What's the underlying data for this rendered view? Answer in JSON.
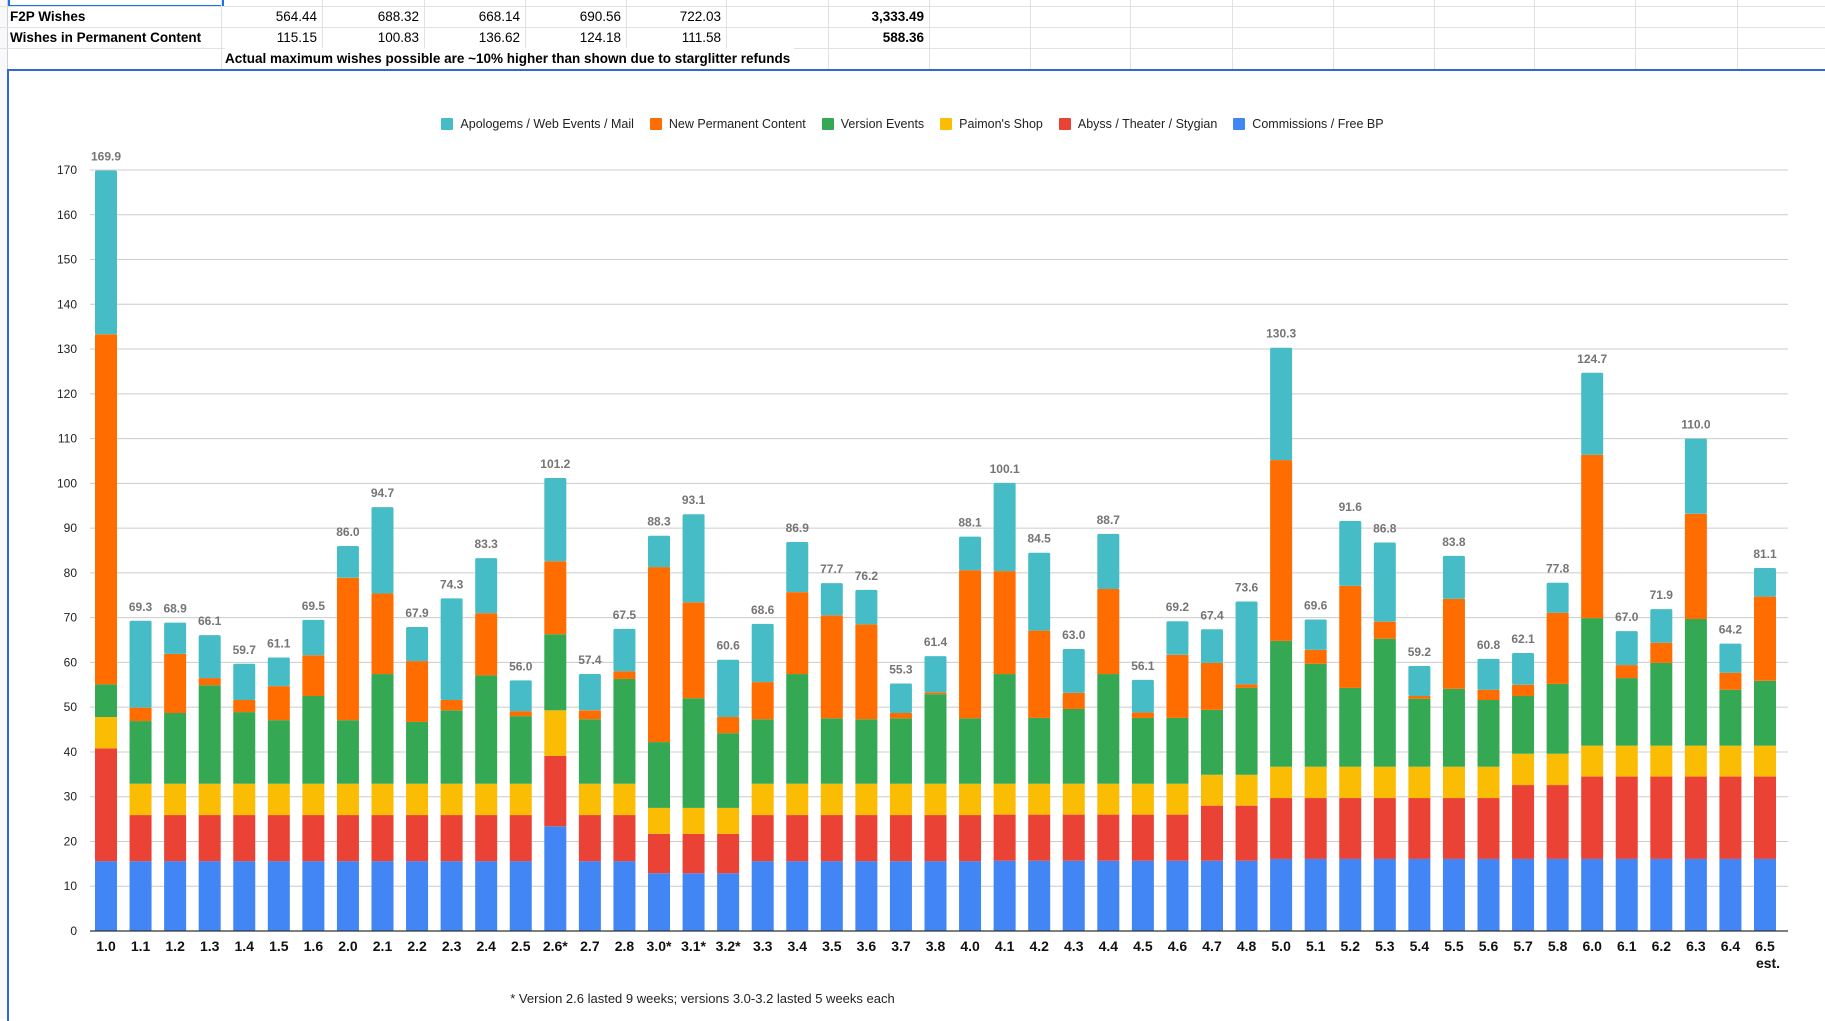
{
  "sheet": {
    "rows": [
      {
        "label": "F2P Wishes",
        "values": [
          "564.44",
          "688.32",
          "668.14",
          "690.56",
          "722.03"
        ],
        "total": "3,333.49"
      },
      {
        "label": "Wishes in Permanent Content",
        "values": [
          "115.15",
          "100.83",
          "136.62",
          "124.18",
          "111.58"
        ],
        "total": "588.36"
      }
    ],
    "note": "Actual maximum wishes possible are ~10% higher than shown due to starglitter refunds"
  },
  "colors": {
    "apologems": "#46bdc6",
    "permanent": "#ff6d01",
    "version_events": "#34a853",
    "paimon": "#fbbc04",
    "abyss": "#ea4335",
    "commissions": "#4285f4",
    "total_label": "#757575",
    "grid": "#cccccc"
  },
  "chart_data": {
    "type": "bar",
    "stacked": true,
    "title": "",
    "xlabel": "",
    "ylabel": "",
    "ylim": [
      0,
      170
    ],
    "yticks": [
      0,
      10,
      20,
      30,
      40,
      50,
      60,
      70,
      80,
      90,
      100,
      110,
      120,
      130,
      140,
      150,
      160,
      170
    ],
    "grid": true,
    "legend_position": "top",
    "legend": [
      "Apologems / Web Events / Mail",
      "New Permanent Content",
      "Version Events",
      "Paimon's Shop",
      "Abyss / Theater / Stygian",
      "Commissions / Free BP"
    ],
    "categories": [
      "1.0",
      "1.1",
      "1.2",
      "1.3",
      "1.4",
      "1.5",
      "1.6",
      "2.0",
      "2.1",
      "2.2",
      "2.3",
      "2.4",
      "2.5",
      "2.6*",
      "2.7",
      "2.8",
      "3.0*",
      "3.1*",
      "3.2*",
      "3.3",
      "3.4",
      "3.5",
      "3.6",
      "3.7",
      "3.8",
      "4.0",
      "4.1",
      "4.2",
      "4.3",
      "4.4",
      "4.5",
      "4.6",
      "4.7",
      "4.8",
      "5.0",
      "5.1",
      "5.2",
      "5.3",
      "5.4",
      "5.5",
      "5.6",
      "5.7",
      "5.8",
      "6.0",
      "6.1",
      "6.2",
      "6.3",
      "6.4",
      "6.5 est."
    ],
    "series": [
      {
        "name": "Commissions / Free BP",
        "key": "commissions",
        "values": [
          15.6,
          15.6,
          15.6,
          15.6,
          15.6,
          15.6,
          15.6,
          15.6,
          15.6,
          15.6,
          15.6,
          15.6,
          15.6,
          23.4,
          15.6,
          15.6,
          12.9,
          12.9,
          12.9,
          15.6,
          15.6,
          15.6,
          15.6,
          15.6,
          15.6,
          15.6,
          15.7,
          15.7,
          15.7,
          15.7,
          15.7,
          15.7,
          15.7,
          15.7,
          16.1,
          16.1,
          16.1,
          16.1,
          16.1,
          16.1,
          16.1,
          16.1,
          16.1,
          16.1,
          16.1,
          16.1,
          16.1,
          16.1,
          16.1
        ]
      },
      {
        "name": "Abyss / Theater / Stygian",
        "key": "abyss",
        "values": [
          25.2,
          10.3,
          10.3,
          10.3,
          10.3,
          10.3,
          10.3,
          10.3,
          10.3,
          10.3,
          10.3,
          10.3,
          10.3,
          15.7,
          10.3,
          10.3,
          8.8,
          8.8,
          8.8,
          10.3,
          10.3,
          10.3,
          10.3,
          10.3,
          10.3,
          10.3,
          10.3,
          10.3,
          10.3,
          10.3,
          10.3,
          10.3,
          12.3,
          12.3,
          13.6,
          13.6,
          13.6,
          13.6,
          13.6,
          13.6,
          13.6,
          16.5,
          16.5,
          18.4,
          18.4,
          18.4,
          18.4,
          18.4,
          18.4
        ]
      },
      {
        "name": "Paimon's Shop",
        "key": "paimon",
        "values": [
          7.0,
          7.0,
          7.0,
          7.0,
          7.0,
          7.0,
          7.0,
          7.0,
          7.0,
          7.0,
          7.0,
          7.0,
          7.0,
          10.2,
          7.0,
          7.0,
          5.8,
          5.8,
          5.8,
          7.0,
          7.0,
          7.0,
          7.0,
          7.0,
          7.0,
          7.0,
          6.9,
          6.9,
          6.9,
          6.9,
          6.9,
          6.9,
          6.9,
          6.9,
          7.0,
          7.0,
          7.0,
          7.0,
          7.0,
          7.0,
          7.0,
          7.0,
          7.0,
          6.9,
          6.9,
          6.9,
          6.9,
          6.9,
          6.9
        ]
      },
      {
        "name": "Version Events",
        "key": "version_events",
        "values": [
          7.3,
          14.0,
          15.8,
          22.0,
          16.0,
          14.2,
          19.6,
          14.2,
          24.5,
          13.8,
          16.4,
          24.2,
          15.1,
          17.0,
          14.4,
          23.4,
          14.7,
          24.5,
          16.7,
          14.4,
          24.5,
          14.6,
          14.4,
          14.6,
          20.0,
          14.6,
          24.5,
          14.7,
          16.7,
          24.5,
          14.7,
          14.7,
          14.5,
          19.4,
          28.1,
          23.0,
          17.6,
          28.6,
          15.2,
          17.4,
          14.9,
          12.9,
          15.6,
          28.5,
          15.1,
          18.5,
          28.3,
          12.5,
          14.5
        ]
      },
      {
        "name": "New Permanent Content",
        "key": "permanent",
        "values": [
          78.2,
          3.0,
          13.2,
          1.6,
          2.7,
          7.6,
          9.1,
          31.8,
          18.0,
          13.6,
          2.3,
          13.9,
          1.1,
          16.3,
          2.0,
          1.7,
          39.1,
          21.4,
          3.6,
          8.3,
          18.3,
          23.0,
          21.2,
          1.2,
          0.4,
          33.1,
          23.0,
          19.5,
          3.6,
          19.0,
          1.2,
          14.1,
          10.5,
          0.8,
          40.4,
          3.1,
          22.8,
          3.8,
          0.6,
          20.1,
          2.3,
          2.5,
          15.9,
          36.5,
          2.9,
          4.5,
          23.5,
          3.8,
          18.8
        ]
      },
      {
        "name": "Apologems / Web Events / Mail",
        "key": "apologems",
        "values": [
          36.6,
          19.4,
          7.0,
          9.6,
          8.1,
          6.4,
          7.9,
          7.1,
          19.3,
          7.6,
          22.7,
          12.3,
          6.9,
          18.6,
          8.1,
          9.5,
          7.0,
          19.7,
          12.8,
          13.0,
          11.2,
          7.2,
          7.7,
          6.6,
          8.1,
          7.5,
          19.7,
          17.4,
          9.8,
          12.3,
          7.3,
          7.5,
          7.5,
          18.5,
          25.1,
          6.8,
          14.5,
          17.7,
          6.7,
          9.6,
          6.9,
          7.1,
          6.7,
          18.3,
          7.6,
          7.5,
          16.8,
          6.5,
          6.4
        ]
      }
    ],
    "totals": [
      "169.9",
      "69.3",
      "68.9",
      "66.1",
      "59.7",
      "61.1",
      "69.5",
      "86.0",
      "94.7",
      "67.9",
      "74.3",
      "83.3",
      "56.0",
      "101.2",
      "57.4",
      "67.5",
      "88.3",
      "93.1",
      "60.6",
      "68.6",
      "86.9",
      "77.7",
      "76.2",
      "55.3",
      "61.4",
      "88.1",
      "100.1",
      "84.5",
      "63.0",
      "88.7",
      "56.1",
      "69.2",
      "67.4",
      "73.6",
      "130.3",
      "69.6",
      "91.6",
      "86.8",
      "59.2",
      "83.8",
      "60.8",
      "62.1",
      "77.8",
      "124.7",
      "67.0",
      "71.9",
      "110.0",
      "64.2",
      "81.1"
    ],
    "footnote": "* Version 2.6 lasted 9 weeks; versions 3.0-3.2 lasted 5 weeks each"
  }
}
